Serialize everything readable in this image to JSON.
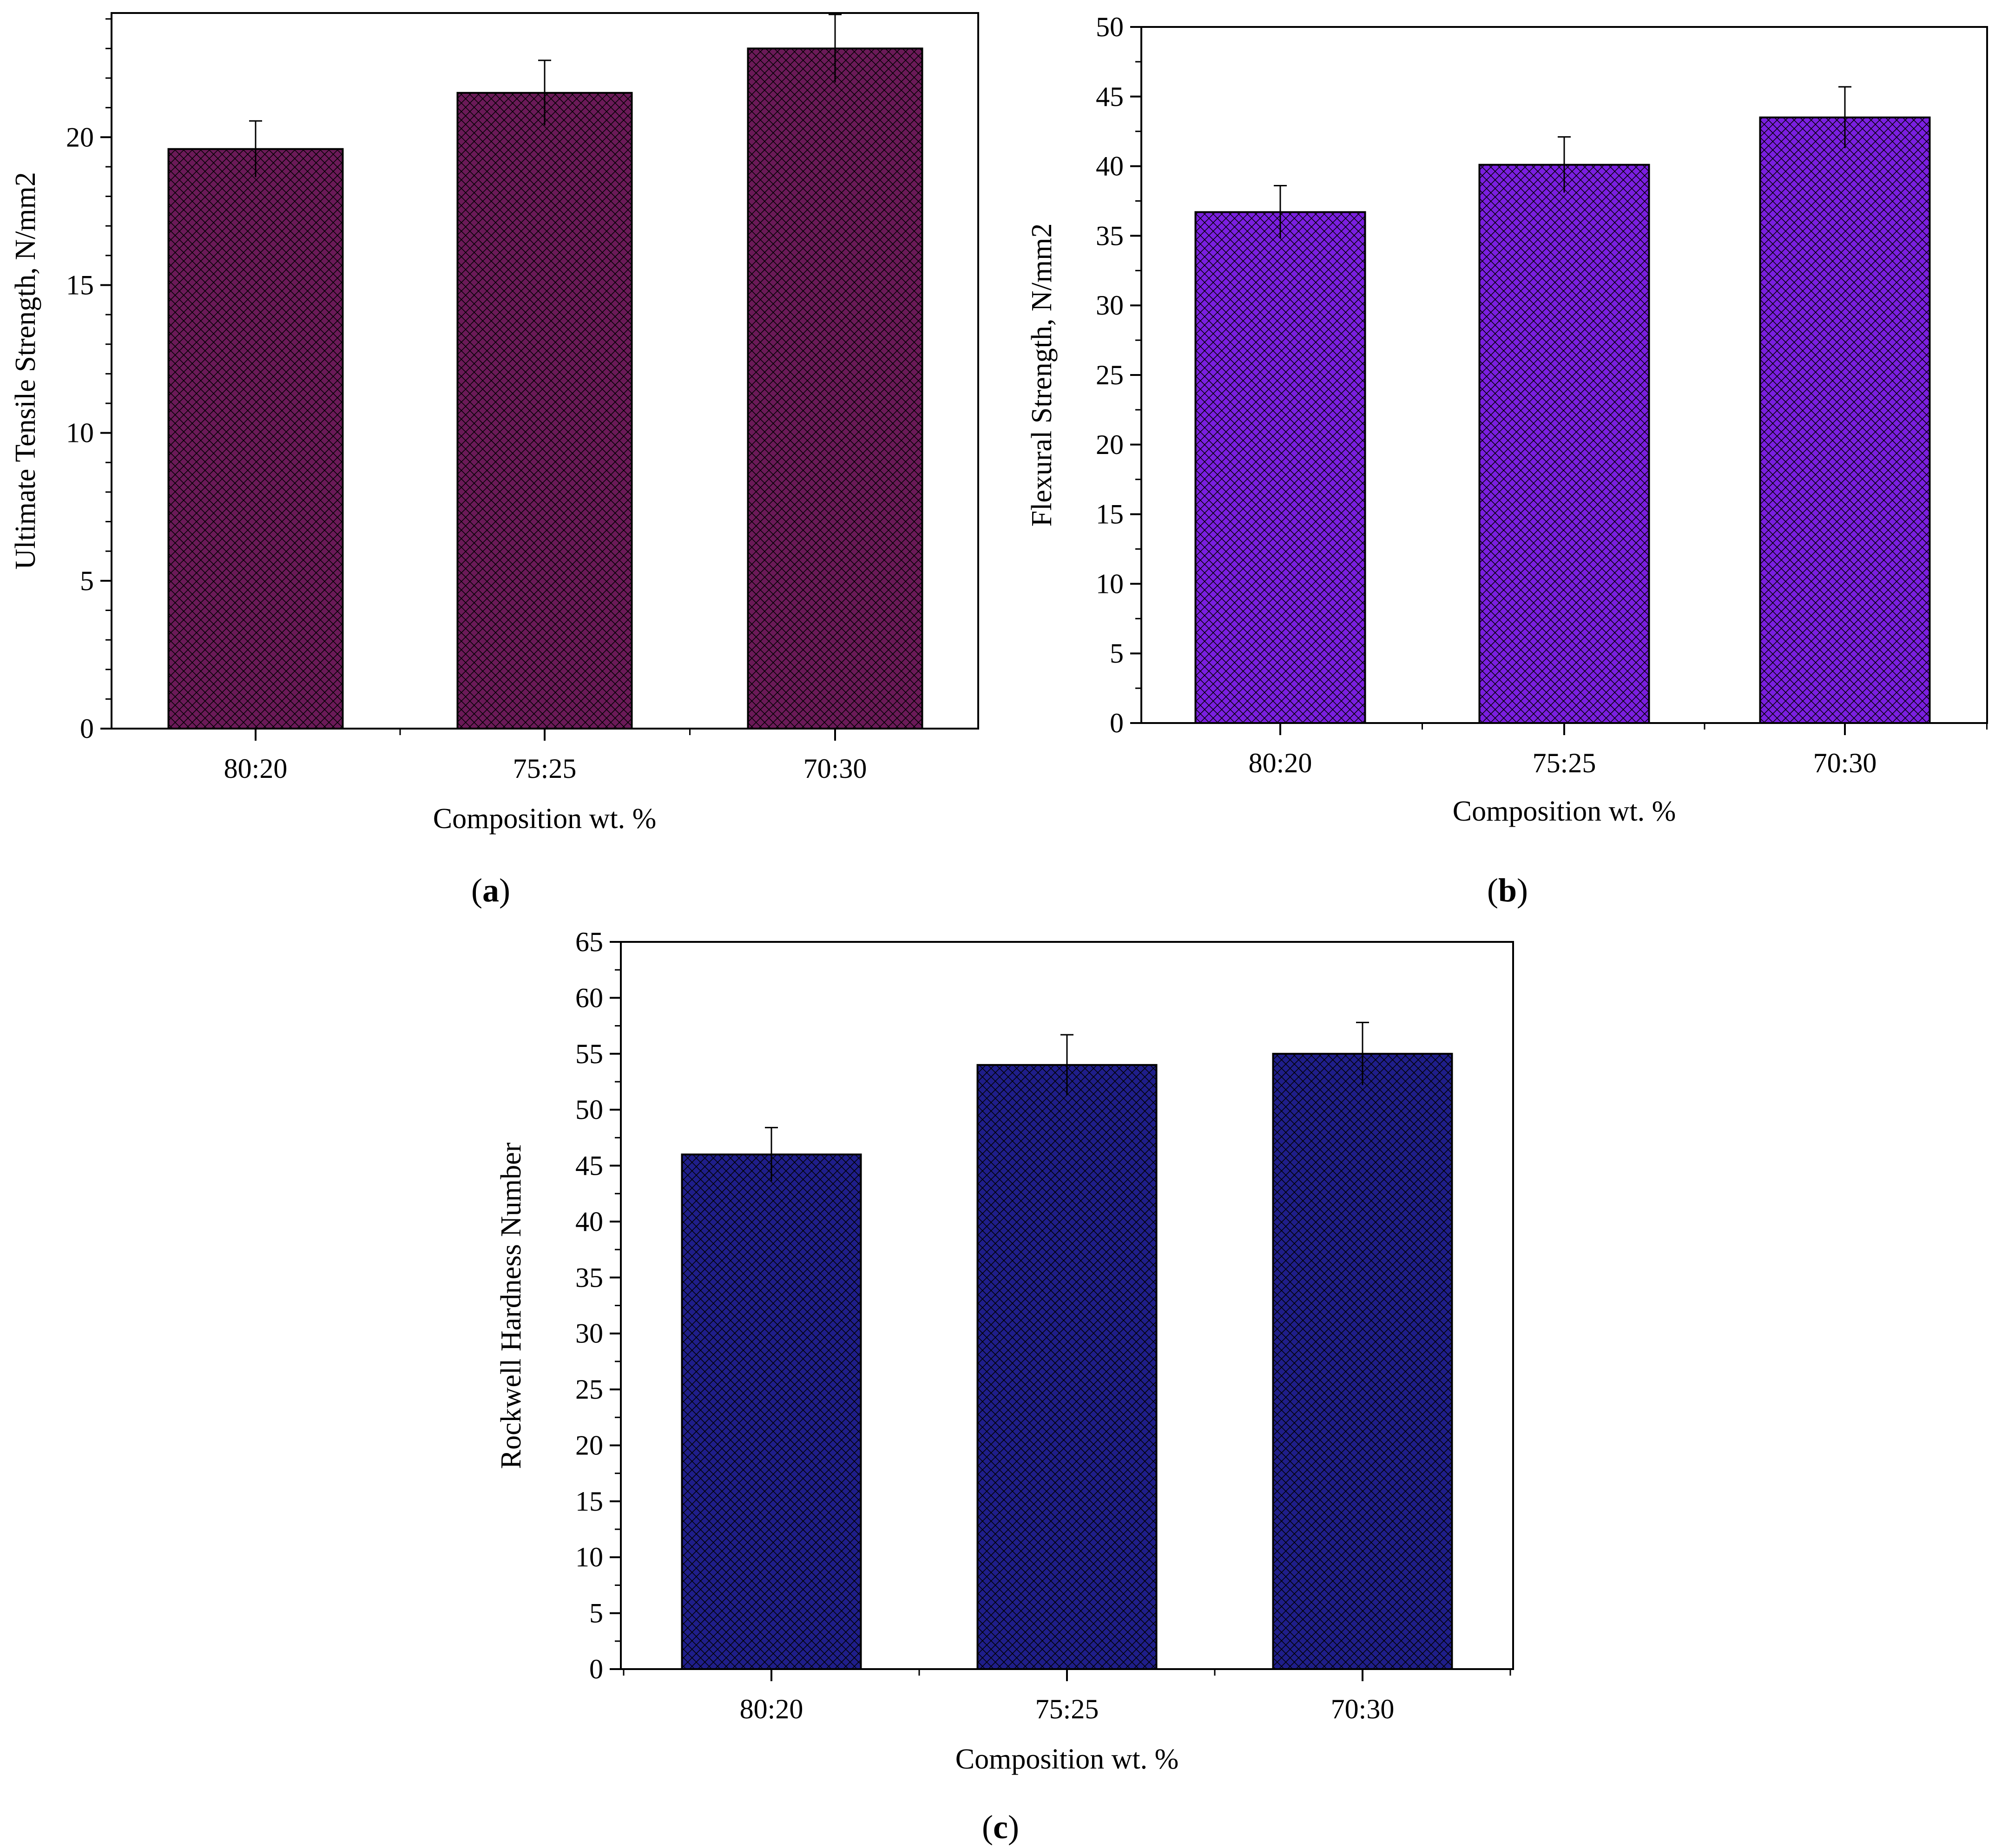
{
  "figure": {
    "panels": [
      "a",
      "b",
      "c"
    ]
  },
  "chart_data": [
    {
      "id": "a",
      "type": "bar",
      "panel_label": "a",
      "title": "",
      "categories": [
        "80:20",
        "75:25",
        "70:30"
      ],
      "values": [
        19.6,
        21.5,
        23.0
      ],
      "errors": [
        0.95,
        1.1,
        1.15
      ],
      "xlabel": "Composition wt. %",
      "ylabel": "Ultimate Tensile Strength, N/mm2",
      "ylim": [
        0,
        24.2
      ],
      "yticks": [
        0,
        5,
        10,
        15,
        20
      ],
      "ytick_labels": [
        "0",
        "5",
        "10",
        "15",
        "20"
      ],
      "minor_tick_step": 1,
      "color": "#6b1a58",
      "grid": false,
      "legend": "none"
    },
    {
      "id": "b",
      "type": "bar",
      "panel_label": "b",
      "title": "",
      "categories": [
        "80:20",
        "75:25",
        "70:30"
      ],
      "values": [
        36.7,
        40.1,
        43.5
      ],
      "errors": [
        1.9,
        2.0,
        2.2
      ],
      "xlabel": "Composition wt. %",
      "ylabel": "Flexural Strength, N/mm2",
      "ylim": [
        0,
        50
      ],
      "yticks": [
        0,
        5,
        10,
        15,
        20,
        25,
        30,
        35,
        40,
        45,
        50
      ],
      "ytick_labels": [
        "0",
        "5",
        "10",
        "15",
        "20",
        "25",
        "30",
        "35",
        "40",
        "45",
        "50"
      ],
      "minor_tick_step": 2.5,
      "color": "#7b1fe0",
      "grid": false,
      "legend": "none"
    },
    {
      "id": "c",
      "type": "bar",
      "panel_label": "c",
      "title": "",
      "categories": [
        "80:20",
        "75:25",
        "70:30"
      ],
      "values": [
        46,
        54,
        55
      ],
      "errors": [
        2.4,
        2.7,
        2.8
      ],
      "xlabel": "Composition wt. %",
      "ylabel": "Rockwell Hardness Number",
      "ylim": [
        0,
        65
      ],
      "yticks": [
        0,
        5,
        10,
        15,
        20,
        25,
        30,
        35,
        40,
        45,
        50,
        55,
        60,
        65
      ],
      "ytick_labels": [
        "0",
        "5",
        "10",
        "15",
        "20",
        "25",
        "30",
        "35",
        "40",
        "45",
        "50",
        "55",
        "60",
        "65"
      ],
      "minor_tick_step": 2.5,
      "color": "#1f1e8a",
      "grid": false,
      "legend": "none"
    }
  ]
}
